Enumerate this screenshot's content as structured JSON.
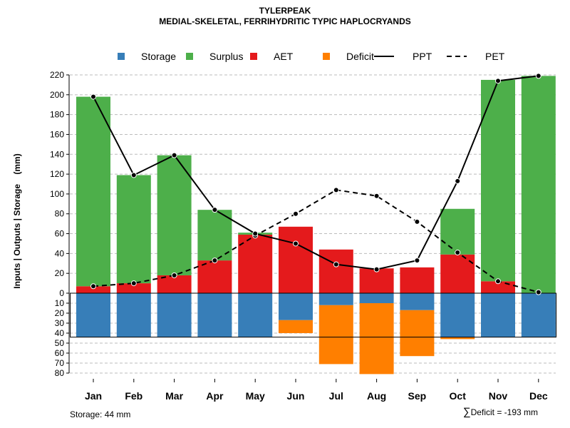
{
  "chart_data": {
    "type": "bar",
    "title": "TYLERPEAK",
    "subtitle": "MEDIAL-SKELETAL, FERRIHYDRITIC TYPIC HAPLOCRYANDS",
    "ylabel": "Inputs | Outputs | Storage    (mm)",
    "xlabel": "",
    "categories": [
      "Jan",
      "Feb",
      "Mar",
      "Apr",
      "May",
      "Jun",
      "Jul",
      "Aug",
      "Sep",
      "Oct",
      "Nov",
      "Dec"
    ],
    "ylim_top": [
      0,
      220
    ],
    "ylim_bottom": [
      0,
      80
    ],
    "yticks_top": [
      "0",
      "20",
      "40",
      "60",
      "80",
      "100",
      "120",
      "140",
      "160",
      "180",
      "200",
      "220"
    ],
    "yticks_bottom": [
      "10",
      "20",
      "30",
      "40",
      "50",
      "60",
      "70",
      "80"
    ],
    "grid": true,
    "legend_position": "top",
    "legend": [
      {
        "label": "Storage",
        "kind": "box",
        "color": "#377EB8"
      },
      {
        "label": "Surplus",
        "kind": "box",
        "color": "#4DAF4A"
      },
      {
        "label": "AET",
        "kind": "box",
        "color": "#E41A1C"
      },
      {
        "label": "Deficit",
        "kind": "box",
        "color": "#FF7F00"
      },
      {
        "label": "PPT",
        "kind": "solid-line",
        "color": "#000000"
      },
      {
        "label": "PET",
        "kind": "dashed-line",
        "color": "#000000"
      }
    ],
    "colors": {
      "storage": "#377EB8",
      "surplus": "#4DAF4A",
      "aet": "#E41A1C",
      "deficit": "#FF7F00",
      "line": "#000000",
      "grid": "#BBBBBB"
    },
    "series": [
      {
        "name": "AET",
        "values": [
          7,
          10,
          18,
          33,
          59,
          67,
          44,
          25,
          26,
          39,
          12,
          0
        ]
      },
      {
        "name": "Surplus",
        "values": [
          191,
          109,
          121,
          51,
          2,
          0,
          0,
          0,
          0,
          46,
          203,
          219
        ]
      },
      {
        "name": "Storage",
        "values": [
          44,
          44,
          44,
          44,
          44,
          27,
          12,
          10,
          17,
          44,
          44,
          44
        ]
      },
      {
        "name": "Deficit",
        "values": [
          0,
          0,
          0,
          0,
          0,
          13,
          59,
          71,
          46,
          2,
          0,
          0
        ]
      },
      {
        "name": "PPT",
        "values": [
          198,
          119,
          139,
          84,
          60,
          50,
          29,
          24,
          33,
          113,
          214,
          219
        ]
      },
      {
        "name": "PET",
        "values": [
          7,
          10,
          18,
          33,
          58,
          80,
          104,
          98,
          72,
          41,
          12,
          1
        ]
      }
    ],
    "storage_capacity": 44
  },
  "notes": {
    "storage": "Storage: 44 mm",
    "deficit_symbol": "∑",
    "deficit": "Deficit = -193 mm"
  }
}
